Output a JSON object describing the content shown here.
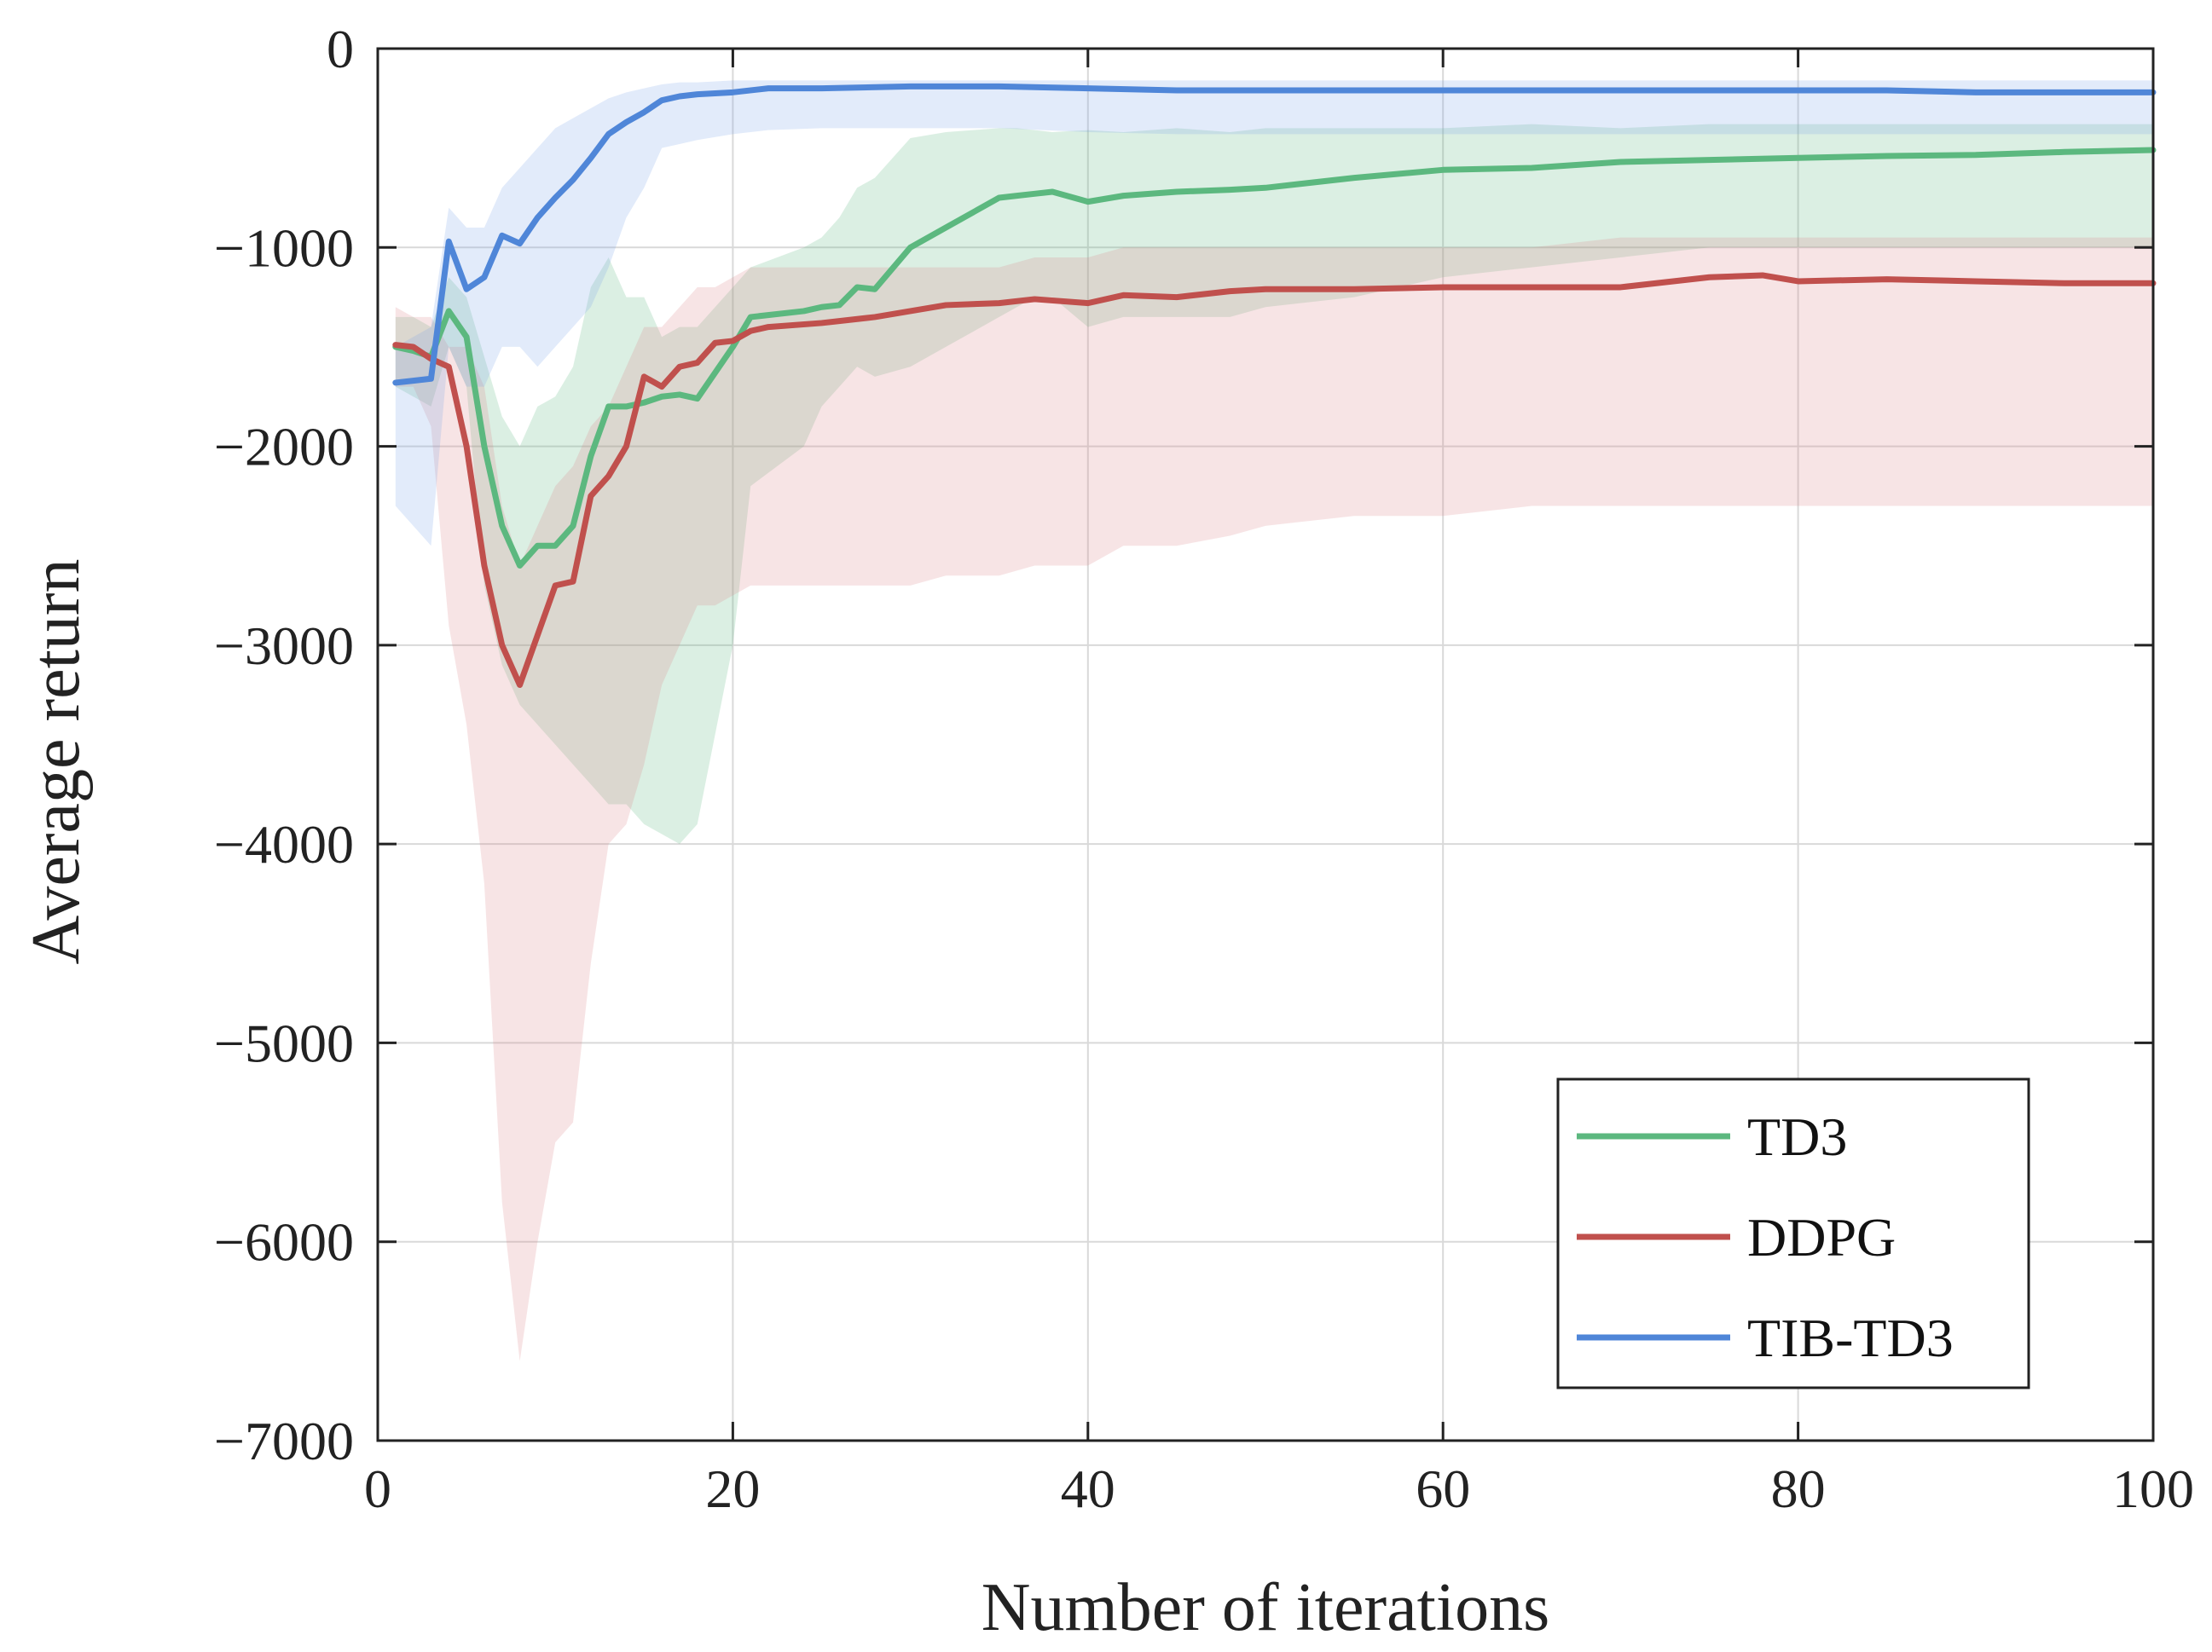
{
  "chart_data": {
    "type": "line",
    "title": "",
    "xlabel": "Number of iterations",
    "ylabel": "Average return",
    "xlim": [
      0,
      100
    ],
    "ylim": [
      -7000,
      0
    ],
    "xticks": [
      0,
      20,
      40,
      60,
      80,
      100
    ],
    "xtick_labels": [
      "0",
      "20",
      "40",
      "60",
      "80",
      "100"
    ],
    "yticks": [
      0,
      -1000,
      -2000,
      -3000,
      -4000,
      -5000,
      -6000,
      -7000
    ],
    "ytick_labels": [
      "0",
      "−1000",
      "−2000",
      "−3000",
      "−4000",
      "−5000",
      "−6000",
      "−7000"
    ],
    "grid": true,
    "legend_position": "bottom-right",
    "series": [
      {
        "name": "TD3",
        "color": "#5cb87f",
        "band_color": "#5cb87f",
        "x": [
          1,
          2,
          3,
          4,
          5,
          6,
          7,
          8,
          9,
          10,
          11,
          12,
          13,
          14,
          15,
          16,
          17,
          18,
          20,
          21,
          24,
          25,
          26,
          27,
          28,
          30,
          32,
          35,
          36,
          37,
          38,
          40,
          42,
          45,
          48,
          50,
          55,
          60,
          65,
          70,
          75,
          80,
          85,
          90,
          95,
          100
        ],
        "values": [
          -1500,
          -1520,
          -1550,
          -1320,
          -1450,
          -2000,
          -2400,
          -2600,
          -2500,
          -2500,
          -2400,
          -2050,
          -1800,
          -1800,
          -1780,
          -1750,
          -1740,
          -1760,
          -1500,
          -1350,
          -1320,
          -1300,
          -1290,
          -1200,
          -1210,
          -1000,
          -900,
          -750,
          -740,
          -730,
          -720,
          -770,
          -740,
          -720,
          -710,
          -700,
          -650,
          -610,
          -600,
          -570,
          -560,
          -550,
          -540,
          -535,
          -520,
          -510
        ],
        "upper": [
          -1350,
          -1350,
          -1400,
          -1150,
          -1250,
          -1550,
          -1850,
          -2000,
          -1800,
          -1750,
          -1600,
          -1200,
          -1050,
          -1250,
          -1250,
          -1450,
          -1400,
          -1400,
          -1200,
          -1100,
          -1000,
          -950,
          -850,
          -700,
          -650,
          -450,
          -420,
          -400,
          -400,
          -410,
          -420,
          -410,
          -420,
          -400,
          -420,
          -400,
          -400,
          -400,
          -380,
          -400,
          -380,
          -380,
          -380,
          -380,
          -380,
          -380
        ],
        "lower": [
          -1700,
          -1750,
          -1800,
          -1500,
          -1700,
          -2700,
          -3100,
          -3300,
          -3400,
          -3500,
          -3600,
          -3700,
          -3800,
          -3800,
          -3900,
          -3950,
          -4000,
          -3900,
          -3000,
          -2200,
          -2000,
          -1800,
          -1700,
          -1600,
          -1650,
          -1600,
          -1500,
          -1350,
          -1300,
          -1250,
          -1250,
          -1400,
          -1350,
          -1350,
          -1350,
          -1300,
          -1250,
          -1150,
          -1100,
          -1050,
          -1000,
          -1000,
          -1000,
          -1000,
          -1000,
          -1000
        ]
      },
      {
        "name": "DDPG",
        "color": "#c0504d",
        "band_color": "#d9828a",
        "x": [
          1,
          2,
          3,
          4,
          5,
          6,
          7,
          8,
          9,
          10,
          11,
          12,
          13,
          14,
          15,
          16,
          17,
          18,
          19,
          20,
          21,
          22,
          25,
          28,
          30,
          32,
          35,
          37,
          40,
          42,
          45,
          48,
          50,
          55,
          60,
          65,
          70,
          75,
          78,
          80,
          85,
          90,
          95,
          100
        ],
        "values": [
          -1490,
          -1500,
          -1560,
          -1600,
          -2000,
          -2600,
          -3000,
          -3200,
          -2950,
          -2700,
          -2680,
          -2250,
          -2150,
          -2000,
          -1650,
          -1700,
          -1600,
          -1580,
          -1480,
          -1470,
          -1420,
          -1400,
          -1380,
          -1350,
          -1320,
          -1290,
          -1280,
          -1260,
          -1280,
          -1240,
          -1250,
          -1220,
          -1210,
          -1210,
          -1200,
          -1200,
          -1200,
          -1150,
          -1140,
          -1170,
          -1160,
          -1170,
          -1180,
          -1180
        ],
        "upper": [
          -1300,
          -1350,
          -1350,
          -1500,
          -1500,
          -1700,
          -2300,
          -2600,
          -2400,
          -2200,
          -2100,
          -1900,
          -1800,
          -1600,
          -1400,
          -1400,
          -1300,
          -1200,
          -1200,
          -1150,
          -1100,
          -1100,
          -1100,
          -1100,
          -1100,
          -1100,
          -1100,
          -1050,
          -1050,
          -1000,
          -1000,
          -1000,
          -1000,
          -1000,
          -1000,
          -1000,
          -950,
          -950,
          -950,
          -950,
          -950,
          -950,
          -950,
          -950
        ],
        "lower": [
          -1700,
          -1700,
          -1900,
          -2900,
          -3400,
          -4200,
          -5800,
          -6600,
          -6000,
          -5500,
          -5400,
          -4600,
          -4000,
          -3900,
          -3600,
          -3200,
          -3000,
          -2800,
          -2800,
          -2750,
          -2700,
          -2700,
          -2700,
          -2700,
          -2700,
          -2650,
          -2650,
          -2600,
          -2600,
          -2500,
          -2500,
          -2450,
          -2400,
          -2350,
          -2350,
          -2300,
          -2300,
          -2300,
          -2300,
          -2300,
          -2300,
          -2300,
          -2300,
          -2300
        ]
      },
      {
        "name": "TIB-TD3",
        "color": "#4f86d8",
        "band_color": "#7aa5e8",
        "x": [
          1,
          2,
          3,
          4,
          5,
          6,
          7,
          8,
          9,
          10,
          11,
          12,
          13,
          14,
          15,
          16,
          17,
          18,
          20,
          22,
          25,
          30,
          35,
          40,
          45,
          50,
          55,
          60,
          65,
          70,
          75,
          80,
          85,
          90,
          95,
          100
        ],
        "values": [
          -1680,
          -1670,
          -1660,
          -970,
          -1210,
          -1150,
          -940,
          -980,
          -850,
          -750,
          -660,
          -550,
          -430,
          -370,
          -320,
          -260,
          -240,
          -230,
          -220,
          -200,
          -200,
          -190,
          -190,
          -200,
          -210,
          -210,
          -210,
          -210,
          -210,
          -210,
          -210,
          -210,
          -210,
          -220,
          -220,
          -220
        ],
        "upper": [
          -1500,
          -1450,
          -1400,
          -800,
          -900,
          -900,
          -700,
          -600,
          -500,
          -400,
          -350,
          -300,
          -250,
          -220,
          -200,
          -180,
          -170,
          -170,
          -160,
          -160,
          -160,
          -160,
          -160,
          -160,
          -160,
          -160,
          -160,
          -160,
          -160,
          -160,
          -160,
          -160,
          -160,
          -160,
          -160,
          -160
        ],
        "lower": [
          -2300,
          -2400,
          -2500,
          -1500,
          -1700,
          -1700,
          -1500,
          -1500,
          -1600,
          -1500,
          -1400,
          -1300,
          -1100,
          -850,
          -700,
          -500,
          -480,
          -460,
          -430,
          -410,
          -400,
          -400,
          -400,
          -420,
          -430,
          -430,
          -430,
          -430,
          -430,
          -430,
          -430,
          -430,
          -430,
          -430,
          -430,
          -430
        ]
      }
    ]
  }
}
